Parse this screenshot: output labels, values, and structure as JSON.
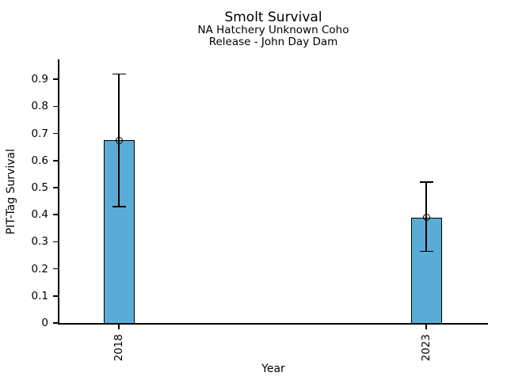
{
  "chart_data": {
    "type": "bar",
    "title": "Smolt Survival",
    "subtitle": [
      "NA Hatchery Unknown Coho",
      "Release - John Day Dam"
    ],
    "xlabel": "Year",
    "ylabel": "PIT-Tag Survival",
    "categories": [
      "2018",
      "2023"
    ],
    "series": [
      {
        "name": "PIT-Tag Survival",
        "values": [
          0.675,
          0.39
        ],
        "error_low": [
          0.43,
          0.265
        ],
        "error_high": [
          0.92,
          0.52
        ]
      }
    ],
    "ylim": [
      0,
      0.97
    ],
    "yticks": [
      0,
      0.1,
      0.2,
      0.3,
      0.4,
      0.5,
      0.6,
      0.7,
      0.8,
      0.9
    ],
    "ytick_labels": [
      "0",
      "0.1",
      "0.2",
      "0.3",
      "0.4",
      "0.5",
      "0.6",
      "0.7",
      "0.8",
      "0.9"
    ],
    "bar_color": "#5aacd6",
    "bar_edge_color": "#000000",
    "axis_color": "#000000",
    "marker": "open-circle",
    "grid": false,
    "legend": false
  }
}
